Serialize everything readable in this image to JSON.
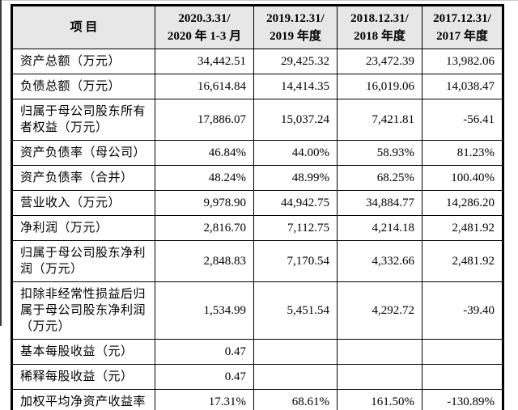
{
  "page": {
    "background": "#ffffff",
    "top_edge_line_color": "#c9c9c9",
    "left_edge_strip_color": "#3a3a3a"
  },
  "table": {
    "header": {
      "background": "#e7e7e7",
      "item_label": "项 目",
      "columns": [
        {
          "line1": "2020.3.31/",
          "line2": "2020 年 1-3 月"
        },
        {
          "line1": "2019.12.31/",
          "line2": "2019 年度"
        },
        {
          "line1": "2018.12.31/",
          "line2": "2018 年度"
        },
        {
          "line1": "2017.12.31/",
          "line2": "2017 年度"
        }
      ]
    },
    "rows": [
      {
        "label": "资产总额（万元）",
        "values": [
          "34,442.51",
          "29,425.32",
          "23,472.39",
          "13,982.06"
        ]
      },
      {
        "label": "负债总额（万元）",
        "values": [
          "16,614.84",
          "14,414.35",
          "16,019.06",
          "14,038.47"
        ]
      },
      {
        "label": "归属于母公司股东所有者权益（万元）",
        "values": [
          "17,886.07",
          "15,037.24",
          "7,421.81",
          "-56.41"
        ]
      },
      {
        "label": "资产负债率（母公司）",
        "values": [
          "46.84%",
          "44.00%",
          "58.93%",
          "81.23%"
        ]
      },
      {
        "label": "资产负债率（合并）",
        "values": [
          "48.24%",
          "48.99%",
          "68.25%",
          "100.40%"
        ]
      },
      {
        "label": "营业收入（万元）",
        "values": [
          "9,978.90",
          "44,942.75",
          "34,884.77",
          "14,286.20"
        ]
      },
      {
        "label": "净利润（万元）",
        "values": [
          "2,816.70",
          "7,112.75",
          "4,214.18",
          "2,481.92"
        ]
      },
      {
        "label": "归属于母公司股东净利润（万元）",
        "values": [
          "2,848.83",
          "7,170.54",
          "4,332.66",
          "2,481.92"
        ]
      },
      {
        "label": "扣除非经常性损益后归属于母公司股东净利润（万元）",
        "values": [
          "1,534.99",
          "5,451.54",
          "4,292.72",
          "-39.40"
        ]
      },
      {
        "label": "基本每股收益（元）",
        "values": [
          "0.47",
          "",
          "",
          ""
        ]
      },
      {
        "label": "稀释每股收益（元）",
        "values": [
          "0.47",
          "",
          "",
          ""
        ]
      },
      {
        "label": "加权平均净资产收益率",
        "values": [
          "17.31%",
          "68.61%",
          "161.50%",
          "-130.89%"
        ]
      }
    ]
  }
}
